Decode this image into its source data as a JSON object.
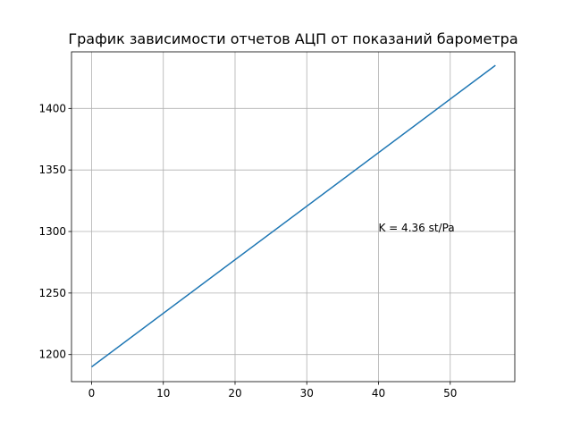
{
  "chart_data": {
    "type": "line",
    "title": "График зависимости отчетов АЦП от показаний барометра",
    "xlabel": "",
    "ylabel": "",
    "xlim": [
      -2.8,
      59.0
    ],
    "ylim": [
      1178,
      1446
    ],
    "xticks": [
      0,
      10,
      20,
      30,
      40,
      50
    ],
    "yticks": [
      1200,
      1250,
      1300,
      1350,
      1400
    ],
    "grid": true,
    "series": [
      {
        "color": "#1f77b4",
        "x": [
          0,
          56.3
        ],
        "y": [
          1190,
          1435
        ]
      }
    ],
    "annotations": [
      {
        "text": "K = 4.36 st/Pa",
        "x": 40,
        "y": 1300
      }
    ]
  }
}
